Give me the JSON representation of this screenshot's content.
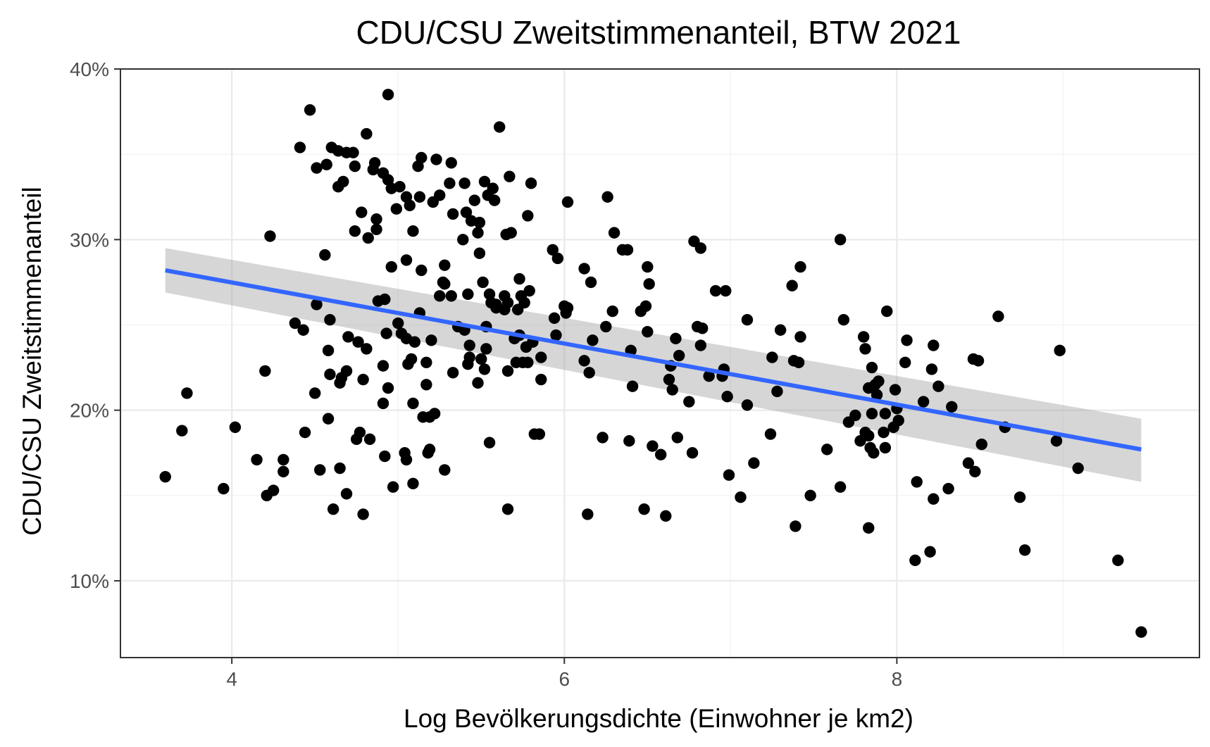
{
  "chart_data": {
    "type": "scatter",
    "title": "CDU/CSU Zweitstimmenanteil, BTW 2021",
    "xlabel": "Log Bevölkerungsdichte (Einwohner je km2)",
    "ylabel": "CDU/CSU Zweitstimmenanteil",
    "xlim": [
      3.33,
      9.82
    ],
    "ylim": [
      0.055,
      0.4
    ],
    "x_ticks": [
      4,
      6,
      8
    ],
    "x_tick_labels": [
      "4",
      "6",
      "8"
    ],
    "y_ticks": [
      0.1,
      0.2,
      0.3,
      0.4
    ],
    "y_tick_labels": [
      "10%",
      "20%",
      "30%",
      "40%"
    ],
    "x_minor_ticks": [
      5,
      7,
      9
    ],
    "y_minor_ticks": [
      0.15,
      0.25,
      0.35
    ],
    "grid": true,
    "legend": "none",
    "fit": {
      "method": "linear",
      "color": "#3366FF",
      "ribbon_color": "#999999",
      "x": [
        3.6,
        9.47
      ],
      "y": [
        0.282,
        0.177
      ],
      "ci_lower": [
        0.269,
        0.158
      ],
      "ci_upper": [
        0.295,
        0.195
      ]
    },
    "points": [
      [
        3.6,
        0.161
      ],
      [
        3.7,
        0.188
      ],
      [
        3.73,
        0.21
      ],
      [
        3.95,
        0.154
      ],
      [
        4.02,
        0.19
      ],
      [
        4.15,
        0.171
      ],
      [
        4.2,
        0.223
      ],
      [
        4.21,
        0.15
      ],
      [
        4.23,
        0.302
      ],
      [
        4.25,
        0.153
      ],
      [
        4.31,
        0.164
      ],
      [
        4.31,
        0.171
      ],
      [
        4.38,
        0.251
      ],
      [
        4.41,
        0.354
      ],
      [
        4.43,
        0.247
      ],
      [
        4.44,
        0.187
      ],
      [
        4.47,
        0.376
      ],
      [
        4.5,
        0.21
      ],
      [
        4.51,
        0.262
      ],
      [
        4.51,
        0.342
      ],
      [
        4.53,
        0.165
      ],
      [
        4.56,
        0.291
      ],
      [
        4.57,
        0.344
      ],
      [
        4.58,
        0.195
      ],
      [
        4.58,
        0.235
      ],
      [
        4.59,
        0.221
      ],
      [
        4.59,
        0.253
      ],
      [
        4.6,
        0.354
      ],
      [
        4.61,
        0.142
      ],
      [
        4.64,
        0.352
      ],
      [
        4.64,
        0.331
      ],
      [
        4.65,
        0.216
      ],
      [
        4.65,
        0.166
      ],
      [
        4.66,
        0.219
      ],
      [
        4.67,
        0.334
      ],
      [
        4.69,
        0.351
      ],
      [
        4.69,
        0.151
      ],
      [
        4.69,
        0.223
      ],
      [
        4.7,
        0.243
      ],
      [
        4.73,
        0.351
      ],
      [
        4.74,
        0.343
      ],
      [
        4.74,
        0.305
      ],
      [
        4.75,
        0.183
      ],
      [
        4.76,
        0.24
      ],
      [
        4.77,
        0.187
      ],
      [
        4.78,
        0.316
      ],
      [
        4.79,
        0.218
      ],
      [
        4.79,
        0.139
      ],
      [
        4.81,
        0.236
      ],
      [
        4.81,
        0.362
      ],
      [
        4.82,
        0.301
      ],
      [
        4.83,
        0.183
      ],
      [
        4.85,
        0.341
      ],
      [
        4.86,
        0.345
      ],
      [
        4.87,
        0.306
      ],
      [
        4.87,
        0.312
      ],
      [
        4.88,
        0.264
      ],
      [
        4.91,
        0.339
      ],
      [
        4.91,
        0.226
      ],
      [
        4.91,
        0.204
      ],
      [
        4.92,
        0.265
      ],
      [
        4.92,
        0.173
      ],
      [
        4.93,
        0.245
      ],
      [
        4.94,
        0.385
      ],
      [
        4.94,
        0.335
      ],
      [
        4.94,
        0.213
      ],
      [
        4.96,
        0.33
      ],
      [
        4.96,
        0.284
      ],
      [
        4.97,
        0.155
      ],
      [
        4.99,
        0.318
      ],
      [
        5,
        0.251
      ],
      [
        5.01,
        0.331
      ],
      [
        5.02,
        0.245
      ],
      [
        5.04,
        0.175
      ],
      [
        5.05,
        0.171
      ],
      [
        5.05,
        0.325
      ],
      [
        5.05,
        0.288
      ],
      [
        5.05,
        0.242
      ],
      [
        5.06,
        0.227
      ],
      [
        5.07,
        0.32
      ],
      [
        5.08,
        0.23
      ],
      [
        5.09,
        0.204
      ],
      [
        5.09,
        0.305
      ],
      [
        5.09,
        0.157
      ],
      [
        5.1,
        0.24
      ],
      [
        5.12,
        0.343
      ],
      [
        5.13,
        0.257
      ],
      [
        5.13,
        0.325
      ],
      [
        5.14,
        0.282
      ],
      [
        5.14,
        0.348
      ],
      [
        5.15,
        0.196
      ],
      [
        5.17,
        0.215
      ],
      [
        5.17,
        0.228
      ],
      [
        5.18,
        0.175
      ],
      [
        5.19,
        0.196
      ],
      [
        5.19,
        0.177
      ],
      [
        5.2,
        0.241
      ],
      [
        5.21,
        0.322
      ],
      [
        5.22,
        0.198
      ],
      [
        5.23,
        0.347
      ],
      [
        5.25,
        0.267
      ],
      [
        5.25,
        0.326
      ],
      [
        5.27,
        0.275
      ],
      [
        5.28,
        0.285
      ],
      [
        5.28,
        0.165
      ],
      [
        5.28,
        0.274
      ],
      [
        5.31,
        0.333
      ],
      [
        5.32,
        0.345
      ],
      [
        5.32,
        0.267
      ],
      [
        5.33,
        0.222
      ],
      [
        5.33,
        0.315
      ],
      [
        5.36,
        0.249
      ],
      [
        5.39,
        0.3
      ],
      [
        5.4,
        0.333
      ],
      [
        5.4,
        0.247
      ],
      [
        5.41,
        0.316
      ],
      [
        5.42,
        0.268
      ],
      [
        5.42,
        0.227
      ],
      [
        5.43,
        0.238
      ],
      [
        5.43,
        0.231
      ],
      [
        5.44,
        0.311
      ],
      [
        5.46,
        0.323
      ],
      [
        5.48,
        0.304
      ],
      [
        5.48,
        0.216
      ],
      [
        5.49,
        0.292
      ],
      [
        5.49,
        0.31
      ],
      [
        5.5,
        0.23
      ],
      [
        5.51,
        0.275
      ],
      [
        5.52,
        0.334
      ],
      [
        5.52,
        0.224
      ],
      [
        5.53,
        0.236
      ],
      [
        5.53,
        0.249
      ],
      [
        5.54,
        0.326
      ],
      [
        5.55,
        0.268
      ],
      [
        5.55,
        0.181
      ],
      [
        5.56,
        0.263
      ],
      [
        5.57,
        0.33
      ],
      [
        5.58,
        0.323
      ],
      [
        5.59,
        0.262
      ],
      [
        5.59,
        0.26
      ],
      [
        5.61,
        0.366
      ],
      [
        5.64,
        0.259
      ],
      [
        5.64,
        0.267
      ],
      [
        5.65,
        0.303
      ],
      [
        5.66,
        0.142
      ],
      [
        5.66,
        0.263
      ],
      [
        5.66,
        0.223
      ],
      [
        5.67,
        0.337
      ],
      [
        5.68,
        0.304
      ],
      [
        5.7,
        0.242
      ],
      [
        5.71,
        0.228
      ],
      [
        5.72,
        0.259
      ],
      [
        5.73,
        0.277
      ],
      [
        5.73,
        0.244
      ],
      [
        5.74,
        0.267
      ],
      [
        5.75,
        0.228
      ],
      [
        5.76,
        0.263
      ],
      [
        5.77,
        0.237
      ],
      [
        5.78,
        0.314
      ],
      [
        5.78,
        0.228
      ],
      [
        5.79,
        0.27
      ],
      [
        5.8,
        0.333
      ],
      [
        5.81,
        0.24
      ],
      [
        5.82,
        0.186
      ],
      [
        5.85,
        0.186
      ],
      [
        5.86,
        0.218
      ],
      [
        5.86,
        0.231
      ],
      [
        5.93,
        0.294
      ],
      [
        5.94,
        0.254
      ],
      [
        5.95,
        0.244
      ],
      [
        5.96,
        0.289
      ],
      [
        6,
        0.261
      ],
      [
        6.01,
        0.257
      ],
      [
        6.02,
        0.26
      ],
      [
        6.02,
        0.322
      ],
      [
        6.12,
        0.229
      ],
      [
        6.12,
        0.283
      ],
      [
        6.14,
        0.139
      ],
      [
        6.15,
        0.222
      ],
      [
        6.16,
        0.275
      ],
      [
        6.17,
        0.241
      ],
      [
        6.23,
        0.184
      ],
      [
        6.25,
        0.249
      ],
      [
        6.26,
        0.325
      ],
      [
        6.29,
        0.258
      ],
      [
        6.3,
        0.304
      ],
      [
        6.35,
        0.294
      ],
      [
        6.38,
        0.294
      ],
      [
        6.39,
        0.182
      ],
      [
        6.4,
        0.235
      ],
      [
        6.41,
        0.214
      ],
      [
        6.46,
        0.258
      ],
      [
        6.48,
        0.142
      ],
      [
        6.49,
        0.261
      ],
      [
        6.5,
        0.284
      ],
      [
        6.5,
        0.246
      ],
      [
        6.51,
        0.274
      ],
      [
        6.53,
        0.179
      ],
      [
        6.58,
        0.174
      ],
      [
        6.61,
        0.138
      ],
      [
        6.63,
        0.218
      ],
      [
        6.64,
        0.226
      ],
      [
        6.65,
        0.212
      ],
      [
        6.67,
        0.242
      ],
      [
        6.68,
        0.184
      ],
      [
        6.69,
        0.232
      ],
      [
        6.75,
        0.205
      ],
      [
        6.77,
        0.175
      ],
      [
        6.78,
        0.299
      ],
      [
        6.8,
        0.249
      ],
      [
        6.82,
        0.238
      ],
      [
        6.82,
        0.295
      ],
      [
        6.83,
        0.248
      ],
      [
        6.87,
        0.22
      ],
      [
        6.91,
        0.27
      ],
      [
        6.95,
        0.22
      ],
      [
        6.96,
        0.224
      ],
      [
        6.97,
        0.27
      ],
      [
        6.98,
        0.208
      ],
      [
        6.99,
        0.162
      ],
      [
        7.06,
        0.149
      ],
      [
        7.1,
        0.253
      ],
      [
        7.1,
        0.203
      ],
      [
        7.14,
        0.169
      ],
      [
        7.24,
        0.186
      ],
      [
        7.25,
        0.231
      ],
      [
        7.28,
        0.211
      ],
      [
        7.3,
        0.247
      ],
      [
        7.37,
        0.273
      ],
      [
        7.38,
        0.229
      ],
      [
        7.39,
        0.132
      ],
      [
        7.41,
        0.228
      ],
      [
        7.42,
        0.243
      ],
      [
        7.42,
        0.284
      ],
      [
        7.48,
        0.15
      ],
      [
        7.58,
        0.177
      ],
      [
        7.66,
        0.3
      ],
      [
        7.66,
        0.155
      ],
      [
        7.68,
        0.253
      ],
      [
        7.71,
        0.193
      ],
      [
        7.75,
        0.197
      ],
      [
        7.78,
        0.182
      ],
      [
        7.8,
        0.243
      ],
      [
        7.81,
        0.236
      ],
      [
        7.81,
        0.187
      ],
      [
        7.83,
        0.213
      ],
      [
        7.83,
        0.185
      ],
      [
        7.83,
        0.131
      ],
      [
        7.84,
        0.178
      ],
      [
        7.85,
        0.225
      ],
      [
        7.85,
        0.198
      ],
      [
        7.86,
        0.175
      ],
      [
        7.87,
        0.215
      ],
      [
        7.88,
        0.209
      ],
      [
        7.89,
        0.217
      ],
      [
        7.92,
        0.187
      ],
      [
        7.93,
        0.178
      ],
      [
        7.93,
        0.198
      ],
      [
        7.94,
        0.258
      ],
      [
        7.98,
        0.19
      ],
      [
        7.99,
        0.212
      ],
      [
        8.0,
        0.201
      ],
      [
        8.01,
        0.194
      ],
      [
        8.05,
        0.228
      ],
      [
        8.06,
        0.241
      ],
      [
        8.11,
        0.112
      ],
      [
        8.12,
        0.158
      ],
      [
        8.16,
        0.205
      ],
      [
        8.2,
        0.117
      ],
      [
        8.21,
        0.224
      ],
      [
        8.22,
        0.148
      ],
      [
        8.22,
        0.238
      ],
      [
        8.25,
        0.214
      ],
      [
        8.31,
        0.154
      ],
      [
        8.33,
        0.202
      ],
      [
        8.43,
        0.169
      ],
      [
        8.46,
        0.23
      ],
      [
        8.47,
        0.164
      ],
      [
        8.49,
        0.229
      ],
      [
        8.51,
        0.18
      ],
      [
        8.61,
        0.255
      ],
      [
        8.65,
        0.19
      ],
      [
        8.74,
        0.149
      ],
      [
        8.77,
        0.118
      ],
      [
        8.96,
        0.182
      ],
      [
        8.98,
        0.235
      ],
      [
        9.09,
        0.166
      ],
      [
        9.33,
        0.112
      ],
      [
        9.47,
        0.07
      ]
    ]
  }
}
